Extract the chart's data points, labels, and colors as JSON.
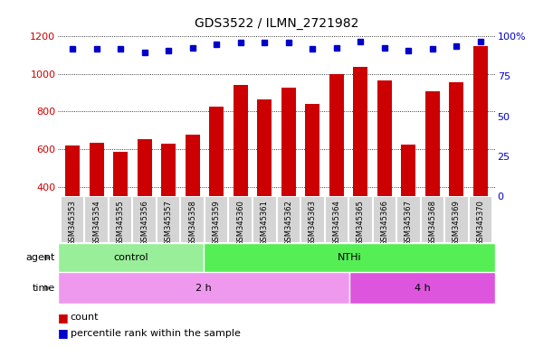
{
  "title": "GDS3522 / ILMN_2721982",
  "samples": [
    "GSM345353",
    "GSM345354",
    "GSM345355",
    "GSM345356",
    "GSM345357",
    "GSM345358",
    "GSM345359",
    "GSM345360",
    "GSM345361",
    "GSM345362",
    "GSM345363",
    "GSM345364",
    "GSM345365",
    "GSM345366",
    "GSM345367",
    "GSM345368",
    "GSM345369",
    "GSM345370"
  ],
  "counts": [
    620,
    632,
    585,
    652,
    630,
    678,
    825,
    940,
    865,
    928,
    840,
    1000,
    1040,
    965,
    625,
    910,
    955,
    1150
  ],
  "percentile_ranks": [
    92,
    92,
    92,
    90,
    91,
    93,
    95,
    96,
    96,
    96,
    92,
    93,
    97,
    93,
    91,
    92,
    94,
    97
  ],
  "ylim_left": [
    350,
    1200
  ],
  "ylim_right": [
    0,
    100
  ],
  "yticks_left": [
    400,
    600,
    800,
    1000,
    1200
  ],
  "yticks_right": [
    0,
    25,
    50,
    75,
    100
  ],
  "bar_color": "#cc0000",
  "dot_color": "#0000cc",
  "agent_groups": [
    {
      "label": "control",
      "start": 0,
      "end": 6,
      "color": "#99ee99"
    },
    {
      "label": "NTHi",
      "start": 6,
      "end": 18,
      "color": "#55ee55"
    }
  ],
  "time_groups": [
    {
      "label": "2 h",
      "start": 0,
      "end": 12,
      "color": "#ee99ee"
    },
    {
      "label": "4 h",
      "start": 12,
      "end": 18,
      "color": "#dd55dd"
    }
  ],
  "agent_label": "agent",
  "time_label": "time",
  "legend_count": "count",
  "legend_pct": "percentile rank within the sample",
  "xtick_bg_color": "#d4d4d4",
  "xtick_border_color": "#ffffff"
}
